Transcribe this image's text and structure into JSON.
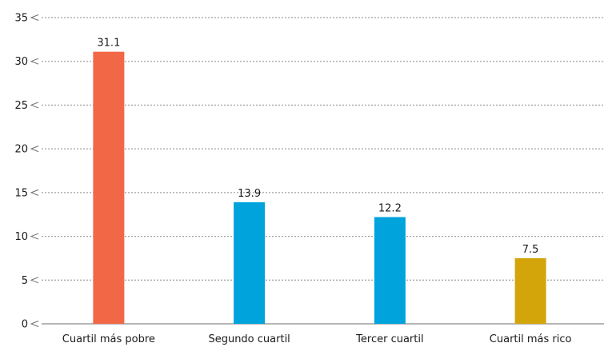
{
  "chart_data": {
    "type": "bar",
    "categories": [
      "Cuartil más pobre",
      "Segundo cuartil",
      "Tercer cuartil",
      "Cuartil más rico"
    ],
    "values": [
      31.1,
      13.9,
      12.2,
      7.5
    ],
    "value_labels": [
      "31.1",
      "13.9",
      "12.2",
      "7.5"
    ],
    "colors": [
      "#f26846",
      "#00a3dc",
      "#00a3dc",
      "#d4a50b"
    ],
    "ylim": [
      0,
      35
    ],
    "yticks": [
      0,
      5,
      10,
      15,
      20,
      25,
      30,
      35
    ],
    "ytick_labels": [
      "0",
      "5",
      "10",
      "15",
      "20",
      "25",
      "30",
      "35"
    ],
    "grid": true,
    "title": "",
    "xlabel": "",
    "ylabel": ""
  }
}
